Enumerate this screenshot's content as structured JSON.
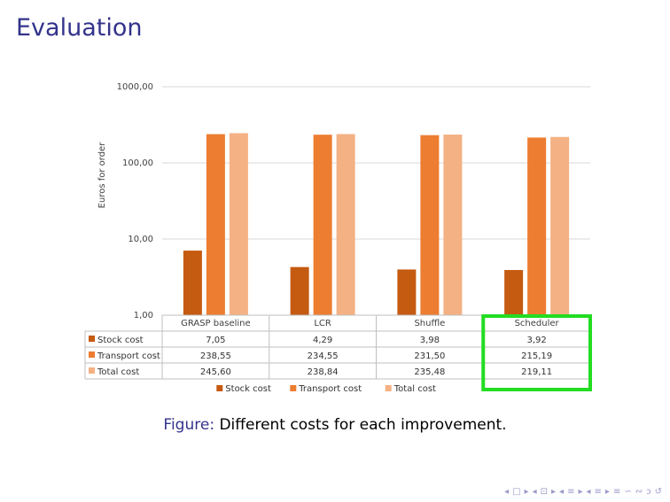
{
  "slide": {
    "title": "Evaluation"
  },
  "caption": {
    "label": "Figure:",
    "text": "Different costs for each improvement."
  },
  "nav": {
    "symbols": [
      "◂",
      "□",
      "▸",
      "◂",
      "⊡",
      "▸",
      "◂",
      "≡",
      "▸",
      "◂",
      "≡",
      "▸",
      "≡",
      "∽",
      "∾",
      "ↄ",
      "↺"
    ]
  },
  "colors": {
    "stock": "#c55a11",
    "transport": "#ed7d31",
    "total": "#f4b183",
    "highlight": "#22dd22",
    "grid": "#d9d9d9",
    "axis_text": "#404040"
  },
  "chart_data": {
    "type": "bar",
    "yscale": "log",
    "ylabel": "Euros for order",
    "ylim": [
      1,
      1000
    ],
    "ytick_labels": [
      "1,00",
      "10,00",
      "100,00",
      "1000,00"
    ],
    "ytick_values": [
      1,
      10,
      100,
      1000
    ],
    "categories": [
      "GRASP baseline",
      "LCR",
      "Shuffle",
      "Scheduler"
    ],
    "series": [
      {
        "name": "Stock cost",
        "values": [
          7.05,
          4.29,
          3.98,
          3.92
        ],
        "labels": [
          "7,05",
          "4,29",
          "3,98",
          "3,92"
        ],
        "color": "#c55a11"
      },
      {
        "name": "Transport cost",
        "values": [
          238.55,
          234.55,
          231.5,
          215.19
        ],
        "labels": [
          "238,55",
          "234,55",
          "231,50",
          "215,19"
        ],
        "color": "#ed7d31"
      },
      {
        "name": "Total cost",
        "values": [
          245.6,
          238.84,
          235.48,
          219.11
        ],
        "labels": [
          "245,60",
          "238,84",
          "235,48",
          "219,11"
        ],
        "color": "#f4b183"
      }
    ],
    "legend_position": "bottom",
    "data_table": true,
    "highlighted_category": "Scheduler",
    "grid": true
  }
}
